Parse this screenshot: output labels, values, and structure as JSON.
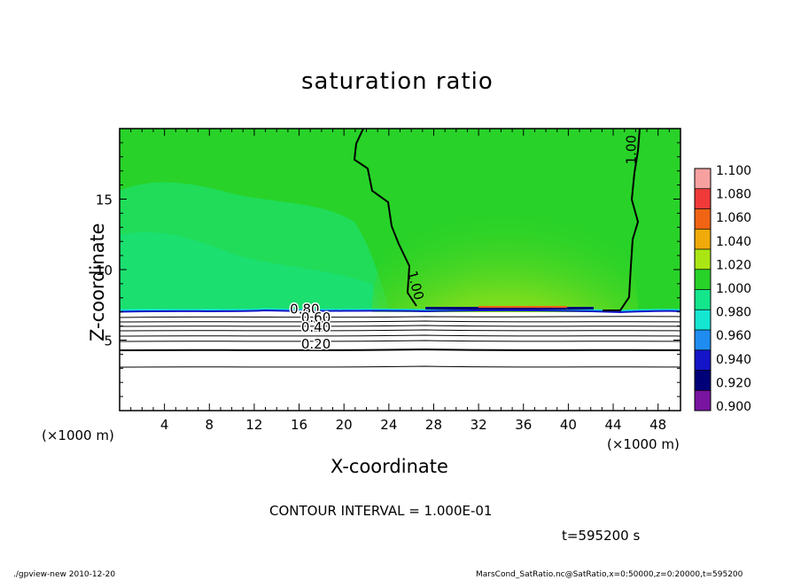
{
  "chart_data": {
    "type": "heatmap",
    "title": "saturation ratio",
    "xlabel": "X-coordinate",
    "ylabel": "Z-coordinate",
    "x_unit": "(×1000 m)",
    "z_unit": "(×1000 m)",
    "xlim": [
      0,
      50
    ],
    "ylim": [
      0,
      20
    ],
    "x_ticks": [
      4,
      8,
      12,
      16,
      20,
      24,
      28,
      32,
      36,
      40,
      44,
      48
    ],
    "y_ticks": [
      5,
      10,
      15
    ],
    "colorbar": {
      "levels": [
        "1.100",
        "1.080",
        "1.060",
        "1.040",
        "1.020",
        "1.000",
        "0.980",
        "0.960",
        "0.940",
        "0.920",
        "0.900"
      ],
      "colors": [
        "#f7a0a0",
        "#f03a3a",
        "#f06414",
        "#f0aa0a",
        "#aae614",
        "#28d228",
        "#14e68c",
        "#14e6d2",
        "#1e8cf0",
        "#1414c8",
        "#000078",
        "#7814a0"
      ]
    },
    "contour_labels": [
      {
        "text": "1.00",
        "x": 26.0,
        "z": 8.8
      },
      {
        "text": "1.00",
        "x": 46.0,
        "z": 18.5
      },
      {
        "text": "0.80",
        "x": 16.5,
        "z": 6.9
      },
      {
        "text": "0.60",
        "x": 17.5,
        "z": 6.3
      },
      {
        "text": "0.40",
        "x": 17.5,
        "z": 5.6
      },
      {
        "text": "0.20",
        "x": 17.5,
        "z": 4.4
      }
    ],
    "contour_interval_text": "CONTOUR INTERVAL = 1.000E-01",
    "time_text": "t=595200 s",
    "footer_left": "./gpview-new   2010-12-20",
    "footer_right": "MarsCond_SatRatio.nc@SatRatio,x=0:50000,z=0:20000,t=595200"
  }
}
